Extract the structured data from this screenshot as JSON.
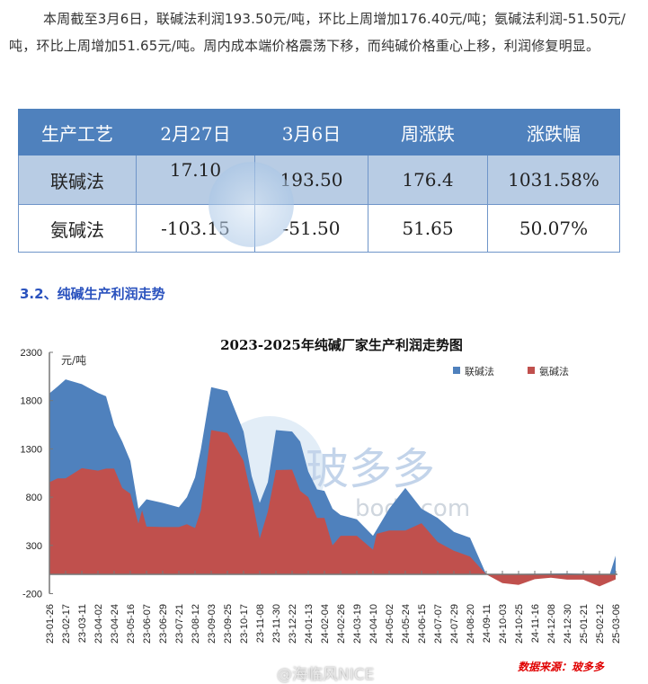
{
  "paragraph": "本周截至3月6日，联碱法利润193.50元/吨，环比上周增加176.40元/吨；氨碱法利润-51.50元/吨，环比上周增加51.65元/吨。周内成本端价格震荡下移，而纯碱价格重心上移，利润修复明显。",
  "table": {
    "headers": [
      "生产工艺",
      "2月27日",
      "3月6日",
      "周涨跌",
      "涨跌幅"
    ],
    "rows": [
      [
        "联碱法",
        "17.10",
        "193.50",
        "176.4",
        "1031.58%"
      ],
      [
        "氨碱法",
        "-103.15",
        "-51.50",
        "51.65",
        "50.07%"
      ]
    ]
  },
  "section_title": "3.2、纯碱生产利润走势",
  "watermark": {
    "brand": "玻多多",
    "site": "bodo.com",
    "weibo": "@海临风NICE"
  },
  "chart_data": {
    "type": "area",
    "title": "2023-2025年纯碱厂家生产利润走势图",
    "ylabel": "元/吨",
    "ylim": [
      -200,
      2300
    ],
    "yticks": [
      "2300",
      "1800",
      "1300",
      "800",
      "300",
      "-200"
    ],
    "grid": false,
    "legend_position": "top-right",
    "source": "数据来源：玻多多",
    "xticks": [
      "23-01-26",
      "23-02-17",
      "23-03-11",
      "23-04-02",
      "23-04-24",
      "23-05-16",
      "23-06-07",
      "23-06-29",
      "23-07-21",
      "23-08-12",
      "23-09-03",
      "23-09-25",
      "23-10-17",
      "23-11-08",
      "23-11-30",
      "23-12-22",
      "24-01-13",
      "24-02-04",
      "24-02-26",
      "24-03-19",
      "24-04-10",
      "24-05-02",
      "24-05-24",
      "24-06-15",
      "24-07-07",
      "24-07-29",
      "24-08-20",
      "24-09-11",
      "24-10-03",
      "24-10-25",
      "24-11-16",
      "24-12-08",
      "24-12-30",
      "25-01-21",
      "25-02-12",
      "25-03-06"
    ],
    "series": [
      {
        "name": "联碱法",
        "color": "#4f81bd",
        "points": [
          [
            "2023-01-26",
            1875
          ],
          [
            "2023-02-06",
            1945
          ],
          [
            "2023-02-17",
            2020
          ],
          [
            "2023-03-11",
            1970
          ],
          [
            "2023-04-02",
            1880
          ],
          [
            "2023-04-13",
            1845
          ],
          [
            "2023-04-24",
            1545
          ],
          [
            "2023-05-05",
            1375
          ],
          [
            "2023-05-16",
            1175
          ],
          [
            "2023-05-27",
            680
          ],
          [
            "2023-06-07",
            778
          ],
          [
            "2023-06-29",
            740
          ],
          [
            "2023-07-21",
            695
          ],
          [
            "2023-08-01",
            800
          ],
          [
            "2023-08-12",
            1005
          ],
          [
            "2023-08-20",
            1295
          ],
          [
            "2023-09-03",
            1940
          ],
          [
            "2023-09-25",
            1900
          ],
          [
            "2023-10-17",
            1480
          ],
          [
            "2023-10-28",
            1020
          ],
          [
            "2023-11-08",
            740
          ],
          [
            "2023-11-19",
            955
          ],
          [
            "2023-11-30",
            1495
          ],
          [
            "2023-12-22",
            1480
          ],
          [
            "2024-01-02",
            1375
          ],
          [
            "2024-01-13",
            1065
          ],
          [
            "2024-01-25",
            880
          ],
          [
            "2024-02-04",
            865
          ],
          [
            "2024-02-15",
            680
          ],
          [
            "2024-02-26",
            615
          ],
          [
            "2024-03-19",
            570
          ],
          [
            "2024-04-10",
            400
          ],
          [
            "2024-05-02",
            680
          ],
          [
            "2024-05-24",
            895
          ],
          [
            "2024-06-15",
            680
          ],
          [
            "2024-07-07",
            585
          ],
          [
            "2024-07-29",
            440
          ],
          [
            "2024-08-20",
            380
          ],
          [
            "2024-09-11",
            0
          ],
          [
            "2024-12-30",
            10
          ],
          [
            "2025-02-26",
            0
          ],
          [
            "2025-03-06",
            193.5
          ]
        ]
      },
      {
        "name": "氨碱法",
        "color": "#c0504d",
        "points": [
          [
            "2023-01-26",
            955
          ],
          [
            "2023-02-06",
            995
          ],
          [
            "2023-02-17",
            995
          ],
          [
            "2023-03-11",
            1100
          ],
          [
            "2023-04-02",
            1075
          ],
          [
            "2023-04-13",
            1095
          ],
          [
            "2023-04-24",
            1095
          ],
          [
            "2023-05-05",
            895
          ],
          [
            "2023-05-16",
            835
          ],
          [
            "2023-05-27",
            525
          ],
          [
            "2023-06-01",
            665
          ],
          [
            "2023-06-07",
            495
          ],
          [
            "2023-06-29",
            490
          ],
          [
            "2023-07-21",
            490
          ],
          [
            "2023-08-01",
            520
          ],
          [
            "2023-08-12",
            480
          ],
          [
            "2023-08-20",
            665
          ],
          [
            "2023-09-03",
            1495
          ],
          [
            "2023-09-25",
            1465
          ],
          [
            "2023-10-17",
            1175
          ],
          [
            "2023-10-28",
            800
          ],
          [
            "2023-11-08",
            370
          ],
          [
            "2023-11-19",
            650
          ],
          [
            "2023-11-30",
            1080
          ],
          [
            "2023-12-22",
            1085
          ],
          [
            "2024-01-02",
            865
          ],
          [
            "2024-01-13",
            800
          ],
          [
            "2024-01-25",
            585
          ],
          [
            "2024-02-04",
            585
          ],
          [
            "2024-02-15",
            300
          ],
          [
            "2024-02-26",
            400
          ],
          [
            "2024-03-19",
            400
          ],
          [
            "2024-04-10",
            255
          ],
          [
            "2024-04-15",
            420
          ],
          [
            "2024-05-02",
            455
          ],
          [
            "2024-05-24",
            455
          ],
          [
            "2024-06-15",
            530
          ],
          [
            "2024-07-07",
            335
          ],
          [
            "2024-07-29",
            245
          ],
          [
            "2024-08-20",
            185
          ],
          [
            "2024-09-11",
            0
          ],
          [
            "2024-10-03",
            -90
          ],
          [
            "2024-10-25",
            -110
          ],
          [
            "2024-11-16",
            -50
          ],
          [
            "2024-12-08",
            -35
          ],
          [
            "2024-12-30",
            -55
          ],
          [
            "2025-01-21",
            -55
          ],
          [
            "2025-02-12",
            -125
          ],
          [
            "2025-03-06",
            -51.5
          ]
        ]
      }
    ]
  }
}
